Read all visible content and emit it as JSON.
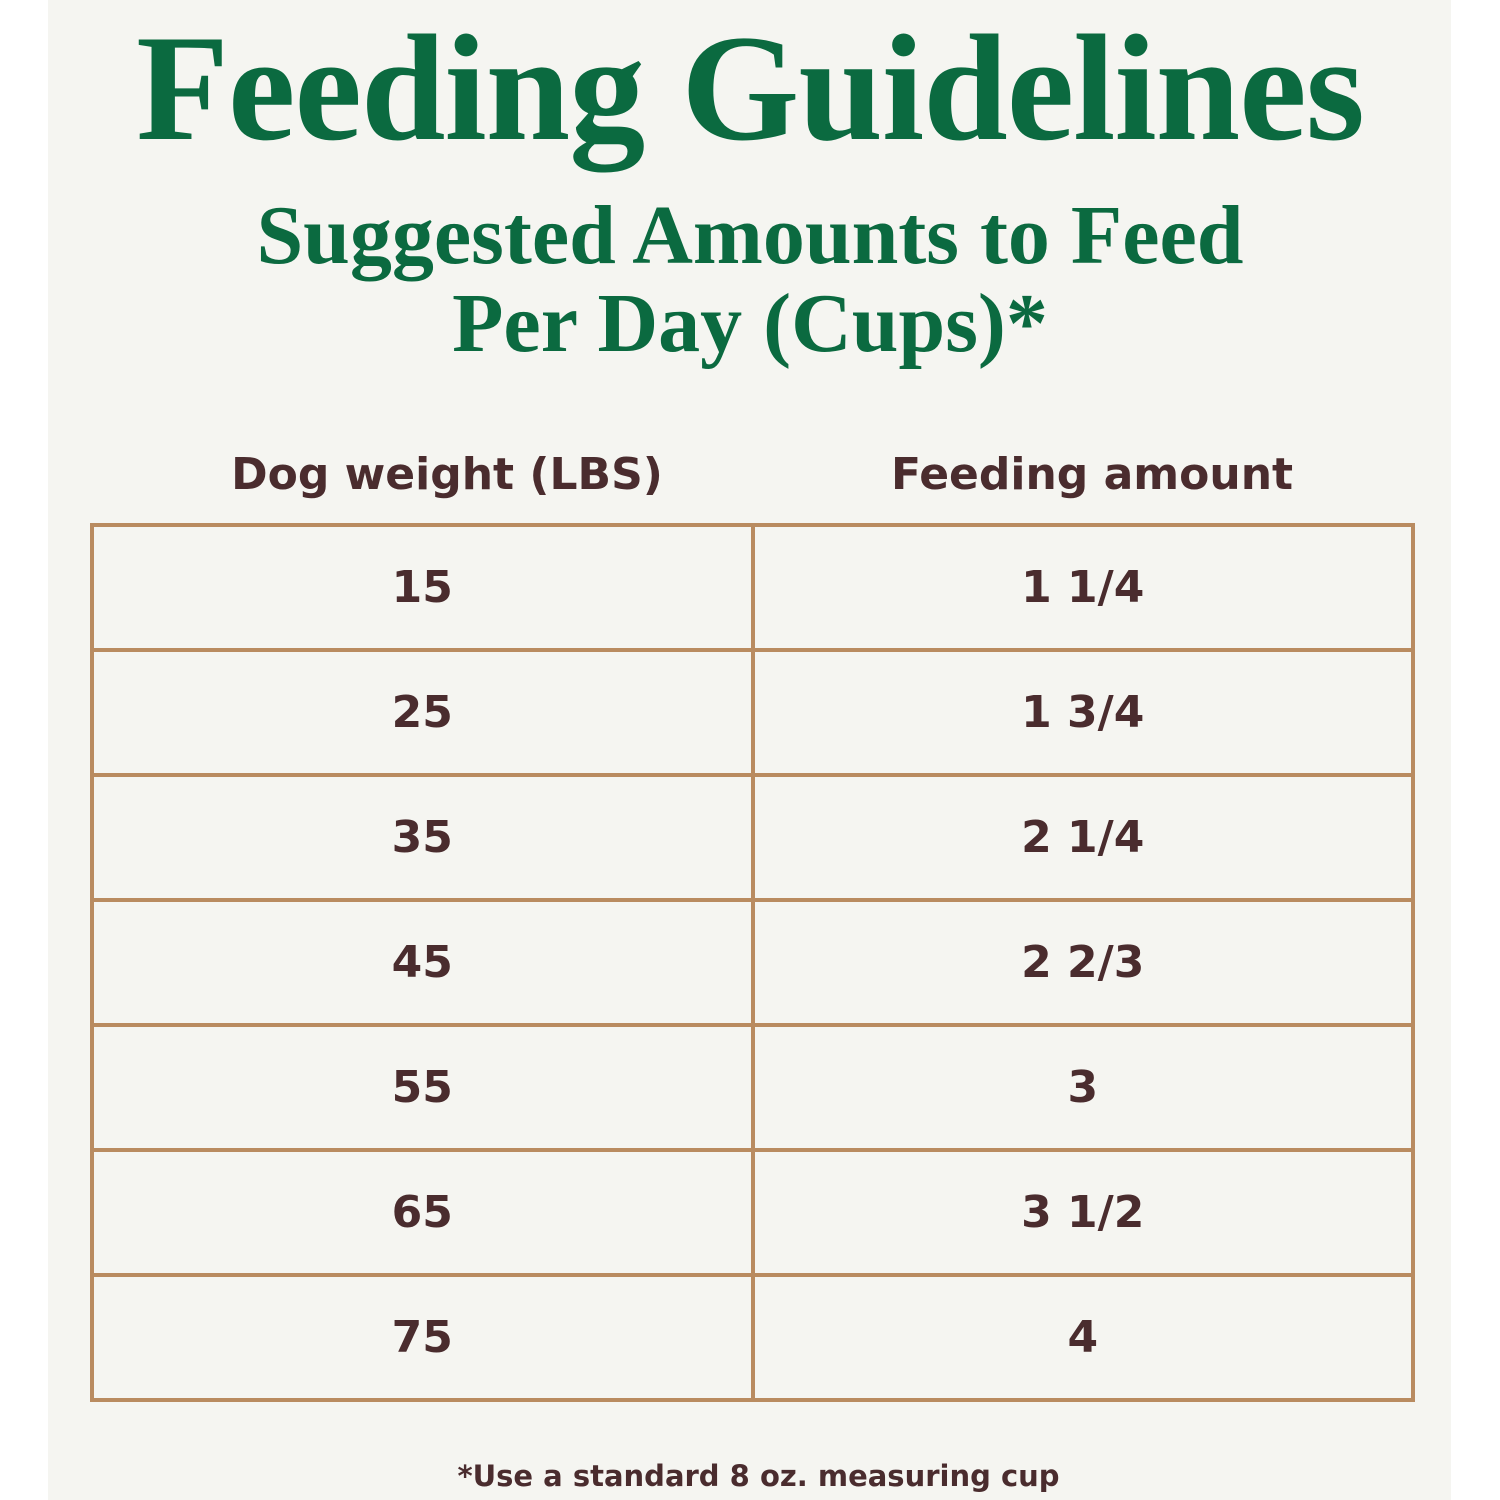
{
  "title": "Feeding Guidelines",
  "subtitle_line1": "Suggested Amounts to Feed",
  "subtitle_line2": "Per Day (Cups)*",
  "table": {
    "headers": [
      "Dog weight (LBS)",
      "Feeding amount"
    ],
    "rows": [
      [
        "15",
        "1 1/4"
      ],
      [
        "25",
        "1 3/4"
      ],
      [
        "35",
        "2 1/4"
      ],
      [
        "45",
        "2 2/3"
      ],
      [
        "55",
        "3"
      ],
      [
        "65",
        "3 1/2"
      ],
      [
        "75",
        "4"
      ]
    ]
  },
  "footnote": "*Use a standard 8 oz. measuring cup",
  "colors": {
    "title_green": "#0b6a40",
    "text_brown": "#4a2c2e",
    "border_tan": "#b98b60",
    "background": "#f5f5f1"
  }
}
